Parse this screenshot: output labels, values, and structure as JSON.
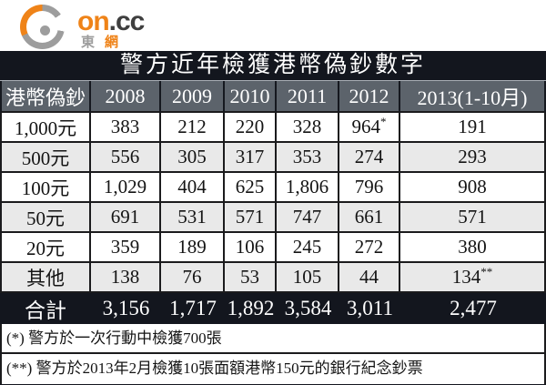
{
  "logo": {
    "brand_orange": "on",
    "brand_dark": ".cc",
    "sub_gray": "東",
    "sub_orange": "網"
  },
  "table": {
    "title": "警方近年檢獲港幣偽鈔數字",
    "columns": [
      "港幣偽鈔",
      "2008",
      "2009",
      "2010",
      "2011",
      "2012",
      "2013(1-10月)"
    ],
    "rows": [
      {
        "label": "1,000元",
        "values": [
          "383",
          "212",
          "220",
          "328",
          "964*",
          "191"
        ]
      },
      {
        "label": "500元",
        "values": [
          "556",
          "305",
          "317",
          "353",
          "274",
          "293"
        ]
      },
      {
        "label": "100元",
        "values": [
          "1,029",
          "404",
          "625",
          "1,806",
          "796",
          "908"
        ]
      },
      {
        "label": "50元",
        "values": [
          "691",
          "531",
          "571",
          "747",
          "661",
          "571"
        ]
      },
      {
        "label": "20元",
        "values": [
          "359",
          "189",
          "106",
          "245",
          "272",
          "380"
        ]
      },
      {
        "label": "其他",
        "values": [
          "138",
          "76",
          "53",
          "105",
          "44",
          "134**"
        ]
      }
    ],
    "total": {
      "label": "合計",
      "values": [
        "3,156",
        "1,717",
        "1,892",
        "3,584",
        "3,011",
        "2,477"
      ]
    },
    "footnotes": [
      "(*) 警方於一次行動中檢獲700張",
      "(**) 警方於2013年2月檢獲10張面額港幣150元的銀行紀念鈔票"
    ]
  },
  "colors": {
    "accent_orange": "#ef8318",
    "dark_bar": "#13161e",
    "header_gray": "#5c636b",
    "alt_row_gray": "#e9e9e9",
    "border_black": "#1b1b1d",
    "logo_gray": "#9d9d9d"
  },
  "chart_data": {
    "type": "table",
    "title": "警方近年檢獲港幣偽鈔數字",
    "columns": [
      "港幣偽鈔",
      "2008",
      "2009",
      "2010",
      "2011",
      "2012",
      "2013(1-10月)"
    ],
    "rows": [
      [
        "1,000元",
        383,
        212,
        220,
        328,
        964,
        191
      ],
      [
        "500元",
        556,
        305,
        317,
        353,
        274,
        293
      ],
      [
        "100元",
        1029,
        404,
        625,
        1806,
        796,
        908
      ],
      [
        "50元",
        691,
        531,
        571,
        747,
        661,
        571
      ],
      [
        "20元",
        359,
        189,
        106,
        245,
        272,
        380
      ],
      [
        "其他",
        138,
        76,
        53,
        105,
        44,
        134
      ]
    ],
    "total": [
      "合計",
      3156,
      1717,
      1892,
      3584,
      3011,
      2477
    ],
    "annotations": [
      "964 (2012, 1000元) 標註* : 警方於一次行動中檢獲700張",
      "134 (2013, 其他) 標註** : 警方於2013年2月檢獲10張面額港幣150元的銀行紀念鈔票"
    ]
  }
}
